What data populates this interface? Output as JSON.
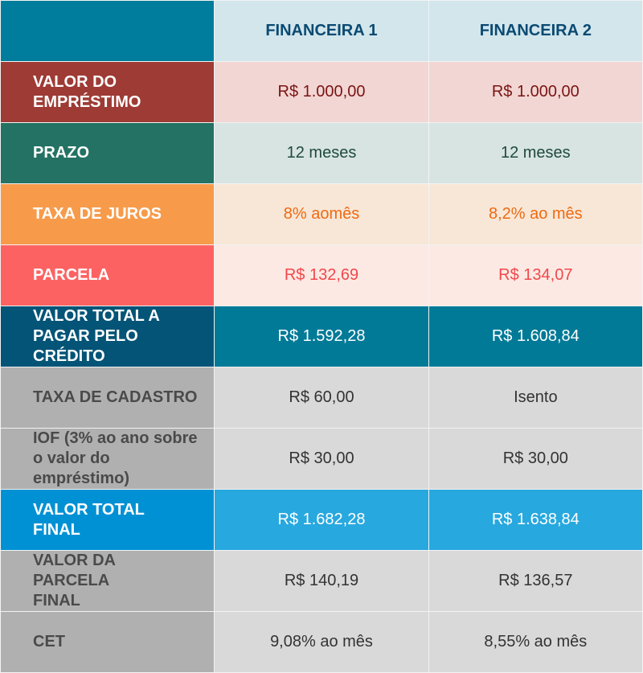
{
  "header": {
    "columns": [
      "FINANCEIRA 1",
      "FINANCEIRA 2"
    ]
  },
  "rows": [
    {
      "label": "VALOR DO EMPRÉSTIMO",
      "values": [
        "R$ 1.000,00",
        "R$ 1.000,00"
      ],
      "label_bg": "#9e3b35",
      "cell_bg": "#f2d6d3",
      "text_color": "#7a1414",
      "label_color": "#ffffff"
    },
    {
      "label": "PRAZO",
      "values": [
        "12 meses",
        "12 meses"
      ],
      "label_bg": "#247263",
      "cell_bg": "#d8e4e2",
      "text_color": "#1e4a3c",
      "label_color": "#ffffff"
    },
    {
      "label": "TAXA DE JUROS",
      "values": [
        "8% aomês",
        "8,2% ao mês"
      ],
      "label_bg": "#f79b4b",
      "cell_bg": "#f8e7d7",
      "text_color": "#ee6a12",
      "label_color": "#ffffff"
    },
    {
      "label": "PARCELA",
      "values": [
        "R$ 132,69",
        "R$ 134,07"
      ],
      "label_bg": "#fd6262",
      "cell_bg": "#fde9e3",
      "text_color": "#f0484c",
      "label_color": "#ffffff"
    },
    {
      "label": "VALOR TOTAL A PAGAR PELO CRÉDITO",
      "values": [
        "R$ 1.592,28",
        "R$ 1.608,84"
      ],
      "label_bg": "#035477",
      "cell_bg": "#007a97",
      "text_color": "#ffffff",
      "label_color": "#ffffff"
    },
    {
      "label": "TAXA DE CADASTRO",
      "values": [
        "R$ 60,00",
        "Isento"
      ],
      "label_bg": "#b0b0b0",
      "cell_bg": "#d9d9d9",
      "text_color": "#333333",
      "label_color": "#4a4a4a"
    },
    {
      "label": "IOF (3% ao ano sobre o valor do empréstimo)",
      "values": [
        "R$ 30,00",
        "R$ 30,00"
      ],
      "label_bg": "#b0b0b0",
      "cell_bg": "#d9d9d9",
      "text_color": "#333333",
      "label_color": "#4a4a4a"
    },
    {
      "label": "VALOR TOTAL FINAL",
      "values": [
        "R$ 1.682,28",
        "R$ 1.638,84"
      ],
      "label_bg": "#0091d4",
      "cell_bg": "#27a8df",
      "text_color": "#ffffff",
      "label_color": "#ffffff"
    },
    {
      "label": "VALOR DA PARCELA FINAL",
      "values": [
        "R$ 140,19",
        "R$ 136,57"
      ],
      "label_bg": "#b0b0b0",
      "cell_bg": "#d9d9d9",
      "text_color": "#333333",
      "label_color": "#4a4a4a"
    },
    {
      "label": "CET",
      "values": [
        "9,08% ao mês",
        "8,55% ao mês"
      ],
      "label_bg": "#b0b0b0",
      "cell_bg": "#d9d9d9",
      "text_color": "#333333",
      "label_color": "#4a4a4a"
    }
  ]
}
